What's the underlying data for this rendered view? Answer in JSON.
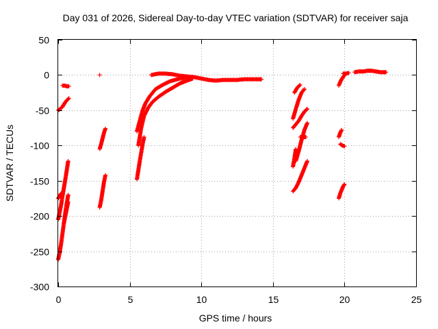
{
  "chart_data": {
    "type": "scatter",
    "title": "Day 031 of 2026, Sidereal Day-to-day VTEC variation (SDTVAR) for receiver saja",
    "xlabel": "GPS time / hours",
    "ylabel": "SDTVAR / TECUs",
    "xlim": [
      0,
      25
    ],
    "ylim": [
      -300,
      50
    ],
    "xticks": [
      "0",
      "5",
      "10",
      "15",
      "20",
      "25"
    ],
    "yticks": [
      "-300",
      "-250",
      "-200",
      "-150",
      "-100",
      "-50",
      "0",
      "50"
    ],
    "grid": true,
    "marker": "+",
    "color": "#ff0000",
    "series": [
      {
        "segments": [
          [
            [
              0.0,
              -50
            ],
            [
              0.15,
              -48
            ],
            [
              0.3,
              -45
            ],
            [
              0.45,
              -40
            ],
            [
              0.6,
              -36
            ],
            [
              0.75,
              -33
            ]
          ],
          [
            [
              0.3,
              -15
            ],
            [
              0.45,
              -15
            ],
            [
              0.6,
              -16
            ],
            [
              0.75,
              -16
            ]
          ],
          [
            [
              0.0,
              -175
            ],
            [
              0.1,
              -172
            ],
            [
              0.2,
              -168
            ]
          ],
          [
            [
              0.0,
              -205
            ],
            [
              0.1,
              -195
            ],
            [
              0.2,
              -185
            ],
            [
              0.3,
              -172
            ],
            [
              0.4,
              -160
            ],
            [
              0.5,
              -148
            ],
            [
              0.6,
              -135
            ],
            [
              0.7,
              -122
            ]
          ],
          [
            [
              0.0,
              -262
            ],
            [
              0.1,
              -252
            ],
            [
              0.2,
              -240
            ],
            [
              0.3,
              -225
            ],
            [
              0.4,
              -210
            ],
            [
              0.5,
              -195
            ],
            [
              0.6,
              -182
            ],
            [
              0.7,
              -170
            ]
          ],
          [
            [
              0.4,
              -210
            ],
            [
              0.5,
              -200
            ],
            [
              0.6,
              -190
            ],
            [
              0.7,
              -180
            ]
          ],
          [
            [
              2.9,
              0
            ]
          ],
          [
            [
              2.9,
              -105
            ],
            [
              3.0,
              -98
            ],
            [
              3.1,
              -90
            ],
            [
              3.2,
              -82
            ],
            [
              3.3,
              -76
            ]
          ],
          [
            [
              2.9,
              -188
            ],
            [
              3.0,
              -178
            ],
            [
              3.1,
              -165
            ],
            [
              3.2,
              -152
            ],
            [
              3.3,
              -142
            ]
          ],
          [
            [
              5.5,
              -148
            ],
            [
              5.6,
              -135
            ],
            [
              5.7,
              -122
            ],
            [
              5.8,
              -110
            ],
            [
              5.9,
              -98
            ],
            [
              6.0,
              -88
            ]
          ],
          [
            [
              5.5,
              -80
            ],
            [
              5.7,
              -65
            ],
            [
              5.9,
              -50
            ],
            [
              6.1,
              -40
            ],
            [
              6.4,
              -30
            ],
            [
              6.8,
              -20
            ],
            [
              7.3,
              -14
            ],
            [
              7.8,
              -9
            ],
            [
              8.5,
              -5
            ],
            [
              9.0,
              -4
            ]
          ],
          [
            [
              5.6,
              -100
            ],
            [
              5.8,
              -75
            ],
            [
              6.0,
              -58
            ],
            [
              6.3,
              -46
            ],
            [
              6.6,
              -38
            ],
            [
              7.0,
              -31
            ],
            [
              7.5,
              -24
            ],
            [
              8.0,
              -18
            ],
            [
              8.5,
              -12
            ],
            [
              9.0,
              -8
            ],
            [
              9.4,
              -5
            ]
          ],
          [
            [
              6.5,
              0
            ],
            [
              7.0,
              2
            ],
            [
              7.5,
              2
            ],
            [
              8.0,
              1
            ],
            [
              8.5,
              -1
            ],
            [
              9.0,
              -2
            ],
            [
              9.5,
              -3
            ],
            [
              10.0,
              -5
            ],
            [
              10.5,
              -7
            ],
            [
              11.0,
              -8
            ],
            [
              11.5,
              -7
            ],
            [
              12.0,
              -7
            ],
            [
              12.5,
              -7
            ],
            [
              13.0,
              -6
            ],
            [
              13.5,
              -6
            ],
            [
              14.0,
              -6
            ],
            [
              14.2,
              -6
            ]
          ],
          [
            [
              16.4,
              -165
            ],
            [
              16.6,
              -160
            ],
            [
              16.8,
              -152
            ],
            [
              17.0,
              -142
            ],
            [
              17.2,
              -132
            ],
            [
              17.4,
              -122
            ]
          ],
          [
            [
              16.4,
              -130
            ],
            [
              16.5,
              -118
            ],
            [
              16.6,
              -105
            ]
          ],
          [
            [
              16.6,
              -122
            ],
            [
              16.8,
              -108
            ],
            [
              17.0,
              -92
            ],
            [
              17.2,
              -78
            ],
            [
              17.4,
              -68
            ]
          ],
          [
            [
              16.9,
              -88
            ],
            [
              17.1,
              -88
            ],
            [
              17.3,
              -88
            ]
          ],
          [
            [
              16.4,
              -75
            ],
            [
              16.6,
              -70
            ],
            [
              16.8,
              -65
            ],
            [
              17.0,
              -58
            ],
            [
              17.2,
              -52
            ],
            [
              17.4,
              -48
            ]
          ],
          [
            [
              16.4,
              -62
            ],
            [
              16.6,
              -48
            ],
            [
              16.8,
              -35
            ],
            [
              17.0,
              -25
            ],
            [
              17.2,
              -20
            ]
          ],
          [
            [
              16.5,
              -25
            ],
            [
              16.7,
              -18
            ],
            [
              16.9,
              -14
            ]
          ],
          [
            [
              19.6,
              -175
            ],
            [
              19.7,
              -168
            ],
            [
              19.8,
              -163
            ],
            [
              19.9,
              -158
            ],
            [
              20.0,
              -155
            ]
          ],
          [
            [
              19.6,
              -88
            ],
            [
              19.7,
              -82
            ],
            [
              19.8,
              -78
            ]
          ],
          [
            [
              19.7,
              -98
            ],
            [
              19.85,
              -100
            ],
            [
              20.0,
              -101
            ]
          ],
          [
            [
              19.6,
              -15
            ],
            [
              19.7,
              -10
            ],
            [
              19.8,
              -6
            ],
            [
              19.9,
              -3
            ],
            [
              20.0,
              0
            ]
          ],
          [
            [
              19.9,
              2
            ],
            [
              20.1,
              2
            ],
            [
              20.3,
              3
            ]
          ],
          [
            [
              20.7,
              4
            ],
            [
              21.0,
              5
            ],
            [
              21.3,
              5
            ],
            [
              21.6,
              6
            ],
            [
              21.9,
              6
            ],
            [
              22.2,
              5
            ],
            [
              22.5,
              4
            ],
            [
              22.8,
              4
            ],
            [
              22.9,
              4
            ]
          ]
        ]
      }
    ]
  }
}
